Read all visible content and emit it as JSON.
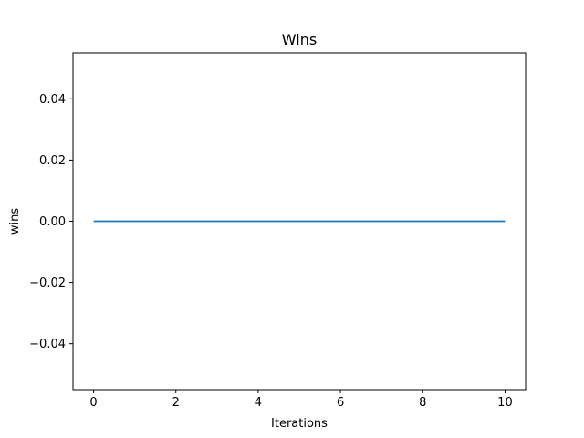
{
  "chart_data": {
    "type": "line",
    "title": "Wins",
    "xlabel": "Iterations",
    "ylabel": "wins",
    "xlim": [
      -0.5,
      10.5
    ],
    "ylim": [
      -0.055,
      0.055
    ],
    "x_ticks": [
      0,
      2,
      4,
      6,
      8,
      10
    ],
    "x_tick_labels": [
      "0",
      "2",
      "4",
      "6",
      "8",
      "10"
    ],
    "y_ticks": [
      -0.04,
      -0.02,
      0.0,
      0.02,
      0.04
    ],
    "y_tick_labels": [
      "−0.04",
      "−0.02",
      "0.00",
      "0.02",
      "0.04"
    ],
    "grid": false,
    "series": [
      {
        "color": "#1f77b4",
        "x": [
          0,
          1,
          2,
          3,
          4,
          5,
          6,
          7,
          8,
          9,
          10
        ],
        "y": [
          0,
          0,
          0,
          0,
          0,
          0,
          0,
          0,
          0,
          0,
          0
        ]
      }
    ]
  }
}
